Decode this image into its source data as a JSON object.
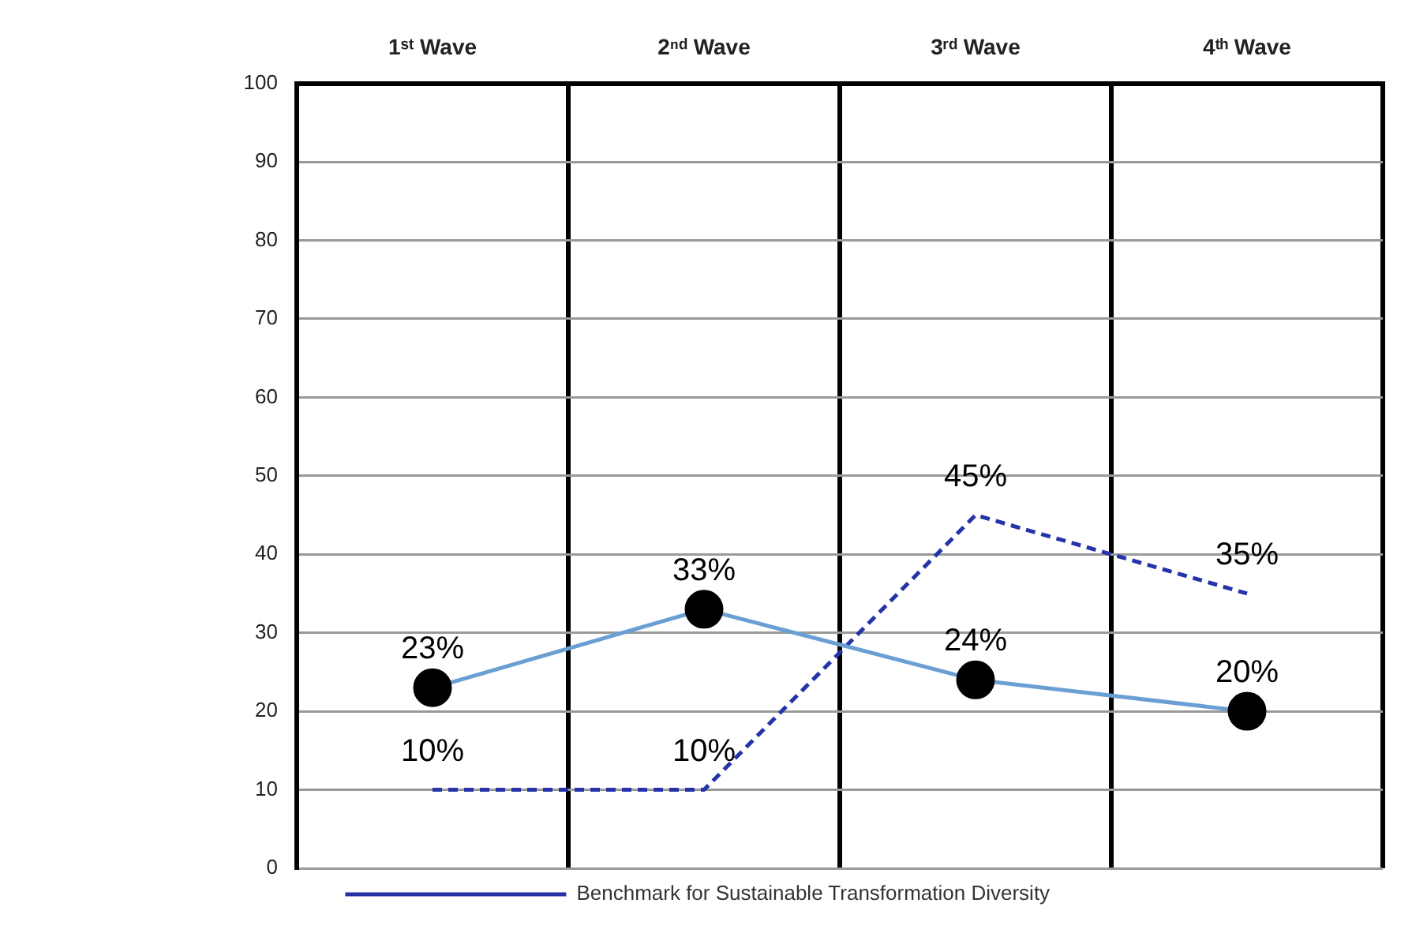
{
  "chart_data": {
    "type": "line",
    "categories": [
      "1ˢᵗ Wave",
      "2ⁿᵈ Wave",
      "3ʳᵈ Wave",
      "4ᵗʰ Wave"
    ],
    "series": [
      {
        "color": "#6a9fd4",
        "values": [
          23,
          33,
          24,
          20
        ],
        "value_labels": [
          "23%",
          "33%",
          "24%",
          "20%"
        ],
        "marker": "circle",
        "line_style": "solid"
      },
      {
        "name": "Benchmark for Sustainable Transformation Diversity",
        "color": "#2433a8",
        "values": [
          10,
          10,
          45,
          35
        ],
        "value_labels": [
          "10%",
          "10%",
          "45%",
          "35%"
        ],
        "marker": "none",
        "line_style": "dashed"
      }
    ],
    "ylim": [
      0,
      100
    ],
    "yticks": [
      0,
      10,
      20,
      30,
      40,
      50,
      60,
      70,
      80,
      90,
      100
    ],
    "grid": true,
    "legend": "bottom"
  }
}
